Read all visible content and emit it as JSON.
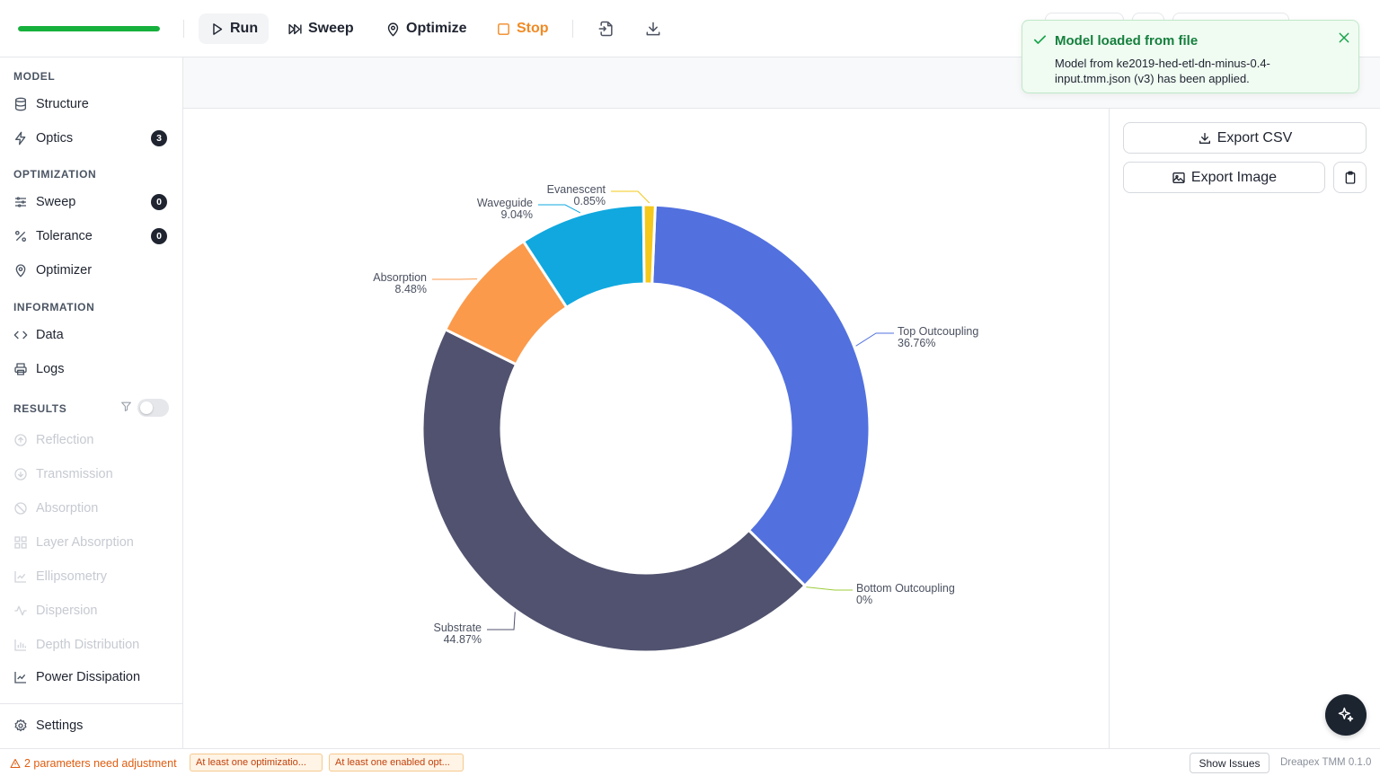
{
  "toolbar": {
    "progress": 1.0,
    "run_label": "Run",
    "sweep_label": "Sweep",
    "optimize_label": "Optimize",
    "stop_label": "Stop",
    "icons": [
      "run-icon",
      "sweep-icon",
      "optimize-icon",
      "stop-icon",
      "import-icon",
      "download-icon"
    ]
  },
  "sidebar": {
    "model_section": "MODEL",
    "structure": "Structure",
    "optics": "Optics",
    "optics_badge": "3",
    "optimization_section": "OPTIMIZATION",
    "sweep": "Sweep",
    "sweep_badge": "0",
    "tolerance": "Tolerance",
    "tolerance_badge": "0",
    "optimizer": "Optimizer",
    "information_section": "INFORMATION",
    "data": "Data",
    "logs": "Logs",
    "results_section": "RESULTS",
    "results_filter_on": false,
    "results": [
      {
        "label": "Reflection",
        "enabled": false
      },
      {
        "label": "Transmission",
        "enabled": false
      },
      {
        "label": "Absorption",
        "enabled": false
      },
      {
        "label": "Layer Absorption",
        "enabled": false
      },
      {
        "label": "Ellipsometry",
        "enabled": false
      },
      {
        "label": "Dispersion",
        "enabled": false
      },
      {
        "label": "Depth Distribution",
        "enabled": false
      },
      {
        "label": "Power Dissipation",
        "enabled": true
      }
    ],
    "settings": "Settings"
  },
  "toast": {
    "title": "Model loaded from file",
    "message": "Model from ke2019-hed-etl-dn-minus-0.4-input.tmm.json (v3) has been applied."
  },
  "right_panel": {
    "export_csv": "Export CSV",
    "export_image": "Export Image"
  },
  "chart_data": {
    "type": "pie",
    "donut": true,
    "slices": [
      {
        "name": "Top Outcoupling",
        "value": 36.76,
        "label": "36.76%",
        "color": "#5271df"
      },
      {
        "name": "Bottom Outcoupling",
        "value": 0.0,
        "label": "0%",
        "color": "#9ccc3a"
      },
      {
        "name": "Substrate",
        "value": 44.87,
        "label": "44.87%",
        "color": "#50526f"
      },
      {
        "name": "Absorption",
        "value": 8.48,
        "label": "8.48%",
        "color": "#fb9a4b"
      },
      {
        "name": "Waveguide",
        "value": 9.04,
        "label": "9.04%",
        "color": "#10a8df"
      },
      {
        "name": "Evanescent",
        "value": 0.85,
        "label": "0.85%",
        "color": "#f5c819"
      }
    ]
  },
  "statusbar": {
    "warning": "2 parameters need adjustment",
    "chip1": "At least one optimizatio...",
    "chip2": "At least one enabled opt...",
    "show_issues": "Show Issues",
    "version": "Dreapex TMM 0.1.0"
  }
}
